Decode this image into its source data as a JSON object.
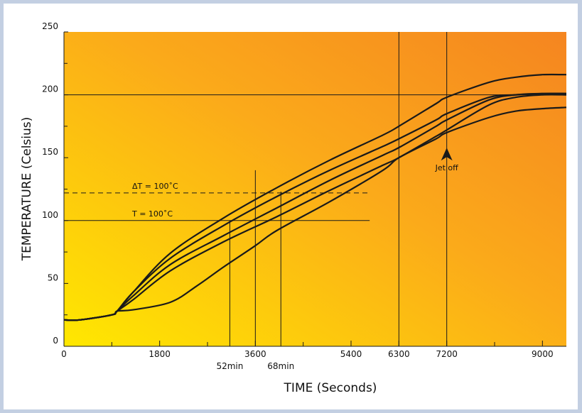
{
  "chart_data": {
    "type": "line",
    "xlabel": "TIME (Seconds)",
    "ylabel": "TEMPERATURE (Celsius)",
    "xlim": [
      0,
      9450
    ],
    "ylim": [
      0,
      250
    ],
    "x_ticks": [
      {
        "value": 0,
        "label": "0"
      },
      {
        "value": 1800,
        "label": "1800"
      },
      {
        "value": 3600,
        "label": "3600"
      },
      {
        "value": 5400,
        "label": "5400"
      },
      {
        "value": 6300,
        "label": "6300"
      },
      {
        "value": 7200,
        "label": "7200"
      },
      {
        "value": 9000,
        "label": "9000"
      }
    ],
    "x_minor_ticks": [
      900,
      2700,
      4500,
      8100
    ],
    "y_ticks": [
      {
        "value": 0,
        "label": "0"
      },
      {
        "value": 50,
        "label": "50"
      },
      {
        "value": 100,
        "label": "100"
      },
      {
        "value": 150,
        "label": "150"
      },
      {
        "value": 200,
        "label": "200"
      },
      {
        "value": 250,
        "label": "250"
      }
    ],
    "y_minor_ticks": [
      25,
      75,
      125,
      175,
      225
    ],
    "series": [
      {
        "x": [
          0,
          300,
          900,
          1000,
          1300,
          2000,
          3000,
          4000,
          5000,
          6000,
          6300,
          7000,
          7200,
          8000,
          8500,
          9000,
          9450
        ],
        "y": [
          21,
          21,
          25,
          28,
          37,
          60,
          83,
          103,
          124,
          144,
          150,
          167,
          172,
          192,
          198,
          200,
          200
        ]
      },
      {
        "x": [
          0,
          300,
          900,
          1000,
          1300,
          2000,
          3000,
          4000,
          5000,
          6000,
          6300,
          7000,
          7200,
          8000,
          8500,
          9000,
          9450
        ],
        "y": [
          21,
          21,
          25,
          28,
          40,
          65,
          88,
          110,
          132,
          152,
          158,
          175,
          180,
          196,
          200,
          201,
          201
        ]
      },
      {
        "x": [
          0,
          300,
          900,
          1000,
          1300,
          2000,
          3000,
          4000,
          5000,
          6000,
          6300,
          7000,
          7200,
          8000,
          8500,
          9000,
          9450
        ],
        "y": [
          21,
          21,
          25,
          28,
          43,
          70,
          96,
          119,
          140,
          159,
          165,
          180,
          185,
          198,
          200,
          201,
          201
        ]
      },
      {
        "x": [
          0,
          300,
          900,
          1000,
          1300,
          2000,
          3000,
          4000,
          5000,
          6000,
          6300,
          7000,
          7200,
          8000,
          8500,
          9000,
          9450
        ],
        "y": [
          21,
          21,
          25,
          28,
          43,
          74,
          102,
          126,
          148,
          168,
          175,
          193,
          198,
          210,
          214,
          216,
          216
        ]
      },
      {
        "x": [
          0,
          300,
          900,
          1000,
          1300,
          2000,
          2500,
          3000,
          3600,
          4000,
          5000,
          6000,
          6300,
          7000,
          7200,
          8000,
          8500,
          9000,
          9450
        ],
        "y": [
          21,
          21,
          25,
          28,
          29,
          35,
          48,
          63,
          80,
          92,
          115,
          140,
          150,
          165,
          170,
          182,
          187,
          189,
          190
        ]
      }
    ],
    "reference_lines": [
      {
        "orientation": "horizontal",
        "y": 200,
        "style": "solid",
        "x_from": 0,
        "x_to": 9450
      },
      {
        "orientation": "horizontal",
        "y": 122,
        "style": "dashed",
        "x_from": 0,
        "x_to": 5750,
        "label": "ΔT = 100˚C"
      },
      {
        "orientation": "horizontal",
        "y": 100,
        "style": "solid",
        "x_from": 0,
        "x_to": 5750,
        "label": "T = 100˚C"
      },
      {
        "orientation": "vertical",
        "x": 3120,
        "y_from": 0,
        "y_to": 100,
        "label": "52min"
      },
      {
        "orientation": "vertical",
        "x": 3600,
        "y_from": 0,
        "y_to": 140,
        "label": ""
      },
      {
        "orientation": "vertical",
        "x": 4080,
        "y_from": 0,
        "y_to": 123,
        "label": "68min"
      },
      {
        "orientation": "vertical",
        "x": 6300,
        "y_from": 0,
        "y_to": 250,
        "label": ""
      },
      {
        "orientation": "vertical",
        "x": 7200,
        "y_from": 0,
        "y_to": 250,
        "label": ""
      }
    ],
    "annotations": [
      {
        "text": "Jet off",
        "x": 7200,
        "y": 150
      }
    ],
    "background": {
      "gradient_from": "#ffe800",
      "gradient_to": "#f58a20"
    },
    "colors": {
      "line": "#1a1a1a",
      "frame": "#c3cfe2"
    },
    "grid": false
  }
}
